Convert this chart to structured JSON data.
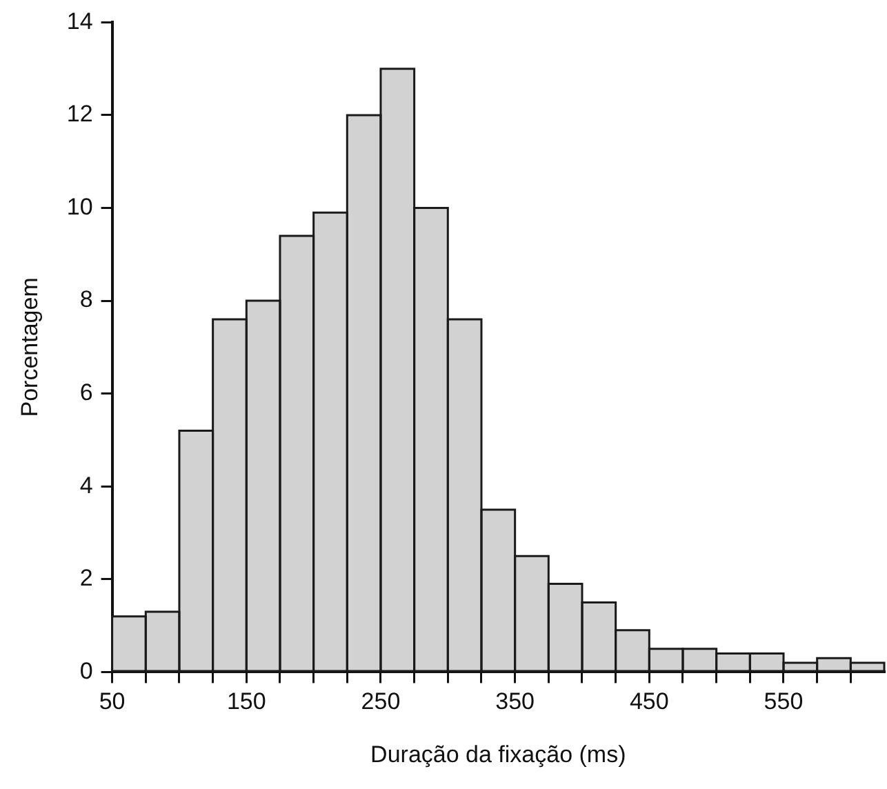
{
  "chart_data": {
    "type": "histogram",
    "xlabel": "Duração da fixação (ms)",
    "ylabel": "Porcentagem",
    "bins": [
      50,
      75,
      100,
      125,
      150,
      175,
      200,
      225,
      250,
      275,
      300,
      325,
      350,
      375,
      400,
      425,
      450,
      475,
      500,
      525,
      550,
      575,
      600,
      625
    ],
    "values": [
      1.2,
      1.3,
      5.2,
      7.6,
      8.0,
      9.4,
      9.9,
      12.0,
      13.0,
      10.0,
      7.6,
      3.5,
      2.5,
      1.9,
      1.5,
      0.9,
      0.5,
      0.5,
      0.4,
      0.4,
      0.2,
      0.3,
      0.2
    ],
    "color": "#d2d2d2",
    "xlim": [
      50,
      625
    ],
    "xticks": [
      50,
      {
        "value": 75,
        "label": null
      },
      {
        "value": 100,
        "label": null
      },
      {
        "value": 125,
        "label": null
      },
      150,
      {
        "value": 175,
        "label": null
      },
      {
        "value": 200,
        "label": null
      },
      {
        "value": 225,
        "label": null
      },
      250,
      {
        "value": 275,
        "label": null
      },
      {
        "value": 300,
        "label": null
      },
      {
        "value": 325,
        "label": null
      },
      350,
      {
        "value": 375,
        "label": null
      },
      {
        "value": 400,
        "label": null
      },
      {
        "value": 425,
        "label": null
      },
      450,
      {
        "value": 475,
        "label": null
      },
      {
        "value": 500,
        "label": null
      },
      {
        "value": 525,
        "label": null
      },
      550,
      {
        "value": 575,
        "label": null
      },
      {
        "value": 600,
        "label": null
      }
    ],
    "ylim": [
      0,
      14
    ],
    "yticks": [
      0,
      2,
      4,
      6,
      8,
      10,
      12,
      14
    ],
    "grid": false,
    "legend": false
  }
}
